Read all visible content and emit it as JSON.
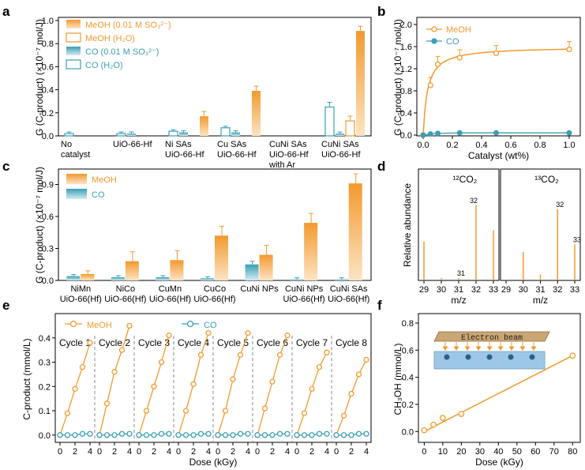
{
  "colors": {
    "meoh": "#f29a2e",
    "co": "#3a9fb5",
    "meoh_light": "#fde4c4",
    "co_light": "#d4ecf2"
  },
  "panel_labels": [
    "a",
    "b",
    "c",
    "d",
    "e",
    "f"
  ],
  "chart_data": [
    {
      "id": "a",
      "type": "bar",
      "ylabel": "G (C-product) (×10⁻⁷ mol/J)",
      "ylim": [
        0,
        1.0
      ],
      "yticks": [
        "0.0",
        "0.2",
        "0.4",
        "0.6",
        "0.8",
        "1.0"
      ],
      "categories": [
        [
          "No",
          "catalyst"
        ],
        [
          "UiO-66-Hf"
        ],
        [
          "Ni SAs",
          "UiO-66-Hf"
        ],
        [
          "Cu SAs",
          "UiO-66-Hf"
        ],
        [
          "CuNi SAs",
          "UiO-66-Hf",
          "with Ar"
        ],
        [
          "CuNi SAs",
          "UiO-66-Hf"
        ]
      ],
      "legend": [
        "MeOH (0.01 M SO₃²⁻)",
        "MeOH (H₂O)",
        "CO (0.01 M SO₃²⁻)",
        "CO (H₂O)"
      ],
      "series": [
        {
          "name": "CO (H₂O)",
          "values": [
            0.02,
            0.02,
            0.04,
            0.07,
            0,
            0.25
          ]
        },
        {
          "name": "CO (0.01 M SO₃²⁻)",
          "values": [
            0,
            0.02,
            0.03,
            0.03,
            0,
            0.02
          ]
        },
        {
          "name": "MeOH (H₂O)",
          "values": [
            0,
            0,
            0,
            0,
            0,
            0.13
          ]
        },
        {
          "name": "MeOH (0.01 M SO₃²⁻)",
          "values": [
            0,
            0,
            0.17,
            0.39,
            0,
            0.91
          ]
        }
      ]
    },
    {
      "id": "b",
      "type": "line",
      "xlabel": "Catalyst (wt%)",
      "ylabel": "G (C-product) (×10⁻⁷ mol/J)",
      "xlim": [
        0,
        1.05
      ],
      "ylim": [
        0,
        2.1
      ],
      "xticks": [
        "0.0",
        "0.2",
        "0.4",
        "0.6",
        "0.8",
        "1.0"
      ],
      "yticks": [
        "0.0",
        "0.4",
        "0.8",
        "1.2",
        "1.6",
        "2.0"
      ],
      "legend": [
        "MeOH",
        "CO"
      ],
      "series": [
        {
          "name": "MeOH",
          "x": [
            0,
            0.05,
            0.1,
            0.25,
            0.5,
            1.0
          ],
          "y": [
            0,
            0.9,
            1.28,
            1.4,
            1.48,
            1.55
          ]
        },
        {
          "name": "CO",
          "x": [
            0,
            0.05,
            0.1,
            0.25,
            0.5,
            1.0
          ],
          "y": [
            0,
            0.02,
            0.03,
            0.04,
            0.04,
            0.04
          ]
        }
      ]
    },
    {
      "id": "c",
      "type": "bar",
      "ylabel": "G (C-product) (×10⁻⁷ mol/J)",
      "ylim": [
        0,
        1.0
      ],
      "yticks": [
        "0.0",
        "0.3",
        "0.6",
        "0.9"
      ],
      "categories": [
        [
          "NiMn",
          "UiO-66(Hf)"
        ],
        [
          "NiCo",
          "UiO-66(Hf)"
        ],
        [
          "CuMn",
          "UiO-66(Hf)"
        ],
        [
          "CuCo",
          "UiO-66(Hf)"
        ],
        [
          "CuNi NPs"
        ],
        [
          "CuNi NPs",
          "UiO-66(Hf)"
        ],
        [
          "CuNi SAs",
          "UiO-66(Hf)"
        ]
      ],
      "legend": [
        "MeOH",
        "CO"
      ],
      "series": [
        {
          "name": "CO",
          "values": [
            0.04,
            0.03,
            0.03,
            0.02,
            0.15,
            0.01,
            0.01
          ]
        },
        {
          "name": "MeOH",
          "values": [
            0.06,
            0.18,
            0.19,
            0.42,
            0.24,
            0.54,
            0.91
          ]
        }
      ]
    },
    {
      "id": "d",
      "type": "bar",
      "ylabel": "Relative abundance",
      "xlabel": "m/z",
      "panels": [
        {
          "title": "¹²CO₂",
          "x": [
            29,
            30,
            31,
            32,
            33
          ],
          "values": [
            0.52,
            0.03,
            0.03,
            1.0,
            0.67
          ],
          "peak_labels": {
            "31": "31",
            "32": "32"
          }
        },
        {
          "title": "¹³CO₂",
          "x": [
            29,
            30,
            31,
            32,
            33
          ],
          "values": [
            0.01,
            0.38,
            0.08,
            0.95,
            0.48
          ],
          "peak_labels": {
            "32": "32",
            "33": "33"
          }
        }
      ],
      "xticks": [
        "29",
        "30",
        "31",
        "32",
        "33"
      ]
    },
    {
      "id": "e",
      "type": "line",
      "xlabel": "Dose (kGy)",
      "ylabel": "C-product (mmol/L)",
      "ylim": [
        -0.03,
        0.5
      ],
      "yticks": [
        "0.0",
        "0.1",
        "0.2",
        "0.3",
        "0.4"
      ],
      "xticks": [
        "0",
        "2",
        "4"
      ],
      "legend": [
        "MeOH",
        "CO"
      ],
      "cycles": [
        "Cycle 1",
        "Cycle 2",
        "Cycle 3",
        "Cycle 4",
        "Cycle 5",
        "Cycle 6",
        "Cycle 7",
        "Cycle 8"
      ],
      "x": [
        0,
        1,
        2,
        3,
        4
      ],
      "series": [
        {
          "name": "MeOH",
          "cycles": [
            [
              0,
              0.09,
              0.19,
              0.28,
              0.38
            ],
            [
              0,
              0.13,
              0.26,
              0.35,
              0.45
            ],
            [
              0,
              0.1,
              0.2,
              0.3,
              0.41
            ],
            [
              0,
              0.1,
              0.21,
              0.33,
              0.42
            ],
            [
              0,
              0.1,
              0.23,
              0.33,
              0.42
            ],
            [
              0,
              0.11,
              0.22,
              0.33,
              0.41
            ],
            [
              0,
              0.09,
              0.19,
              0.28,
              0.34
            ],
            [
              0,
              0.08,
              0.17,
              0.25,
              0.31
            ]
          ]
        },
        {
          "name": "CO",
          "cycles": [
            [
              0,
              0,
              0,
              0.005,
              0.005
            ],
            [
              0,
              0,
              0,
              0.005,
              0.005
            ],
            [
              0,
              0,
              0,
              0.005,
              0.005
            ],
            [
              0,
              0,
              0,
              0.005,
              0.005
            ],
            [
              0,
              0,
              0,
              0.005,
              0.005
            ],
            [
              0,
              0,
              0,
              0.005,
              0.005
            ],
            [
              0,
              0,
              0,
              0.005,
              0.005
            ],
            [
              0,
              0,
              0,
              0.005,
              0.005
            ]
          ]
        }
      ]
    },
    {
      "id": "f",
      "type": "scatter",
      "xlabel": "Dose (kGy)",
      "ylabel": "CH₃OH (mmol/L)",
      "xlim": [
        -1,
        82
      ],
      "ylim": [
        -0.08,
        0.87
      ],
      "xticks": [
        "0",
        "10",
        "20",
        "30",
        "40",
        "50",
        "60",
        "70",
        "80"
      ],
      "yticks": [
        "0.0",
        "0.2",
        "0.4",
        "0.6",
        "0.8"
      ],
      "x": [
        0,
        5,
        10,
        20,
        80
      ],
      "y": [
        0.01,
        0.05,
        0.1,
        0.13,
        0.56
      ],
      "fit": {
        "x": [
          0,
          80
        ],
        "y": [
          0.0,
          0.56
        ]
      },
      "inset_label": "Electron beam"
    }
  ]
}
